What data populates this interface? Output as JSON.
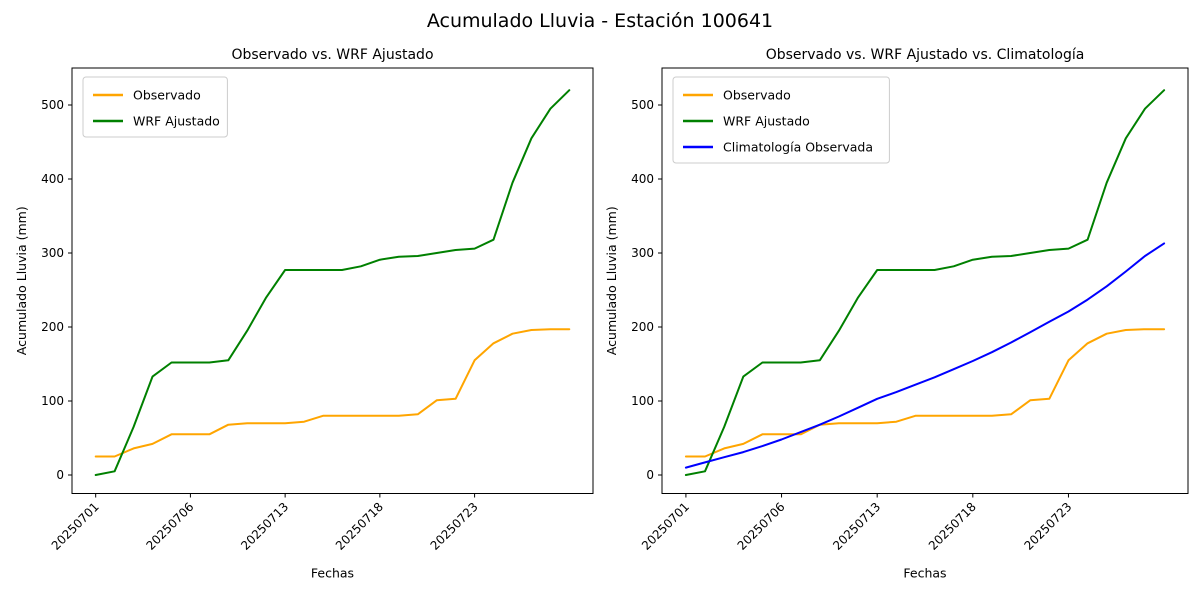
{
  "figure": {
    "suptitle": "Acumulado Lluvia - Estación 100641",
    "background": "#ffffff",
    "axis_color": "#000000",
    "legend_border_color": "#cccccc"
  },
  "chart_data": [
    {
      "type": "line",
      "title": "Observado vs. WRF Ajustado",
      "xlabel": "Fechas",
      "ylabel": "Acumulado Lluvia (mm)",
      "x_tick_positions": [
        0,
        5,
        10,
        15,
        20
      ],
      "x_tick_labels": [
        "20250701",
        "20250706",
        "20250713",
        "20250718",
        "20250723"
      ],
      "y_ticks": [
        0,
        100,
        200,
        300,
        400,
        500
      ],
      "xlim": [
        -1.25,
        26.25
      ],
      "ylim": [
        -25,
        550
      ],
      "n_points": 26,
      "grid": false,
      "legend_position": "upper-left",
      "series": [
        {
          "name": "Observado",
          "color": "#FFA500",
          "values": [
            25,
            25,
            36,
            42,
            55,
            55,
            55,
            68,
            70,
            70,
            70,
            72,
            80,
            80,
            80,
            80,
            80,
            82,
            101,
            103,
            155,
            178,
            191,
            196,
            197,
            197
          ]
        },
        {
          "name": "WRF Ajustado",
          "color": "#008000",
          "values": [
            0,
            5,
            65,
            133,
            152,
            152,
            152,
            155,
            195,
            240,
            277,
            277,
            277,
            277,
            282,
            291,
            295,
            296,
            300,
            304,
            306,
            318,
            395,
            455,
            495,
            520
          ]
        }
      ]
    },
    {
      "type": "line",
      "title": "Observado vs. WRF Ajustado vs. Climatología",
      "xlabel": "Fechas",
      "ylabel": "Acumulado Lluvia (mm)",
      "x_tick_positions": [
        0,
        5,
        10,
        15,
        20
      ],
      "x_tick_labels": [
        "20250701",
        "20250706",
        "20250713",
        "20250718",
        "20250723"
      ],
      "y_ticks": [
        0,
        100,
        200,
        300,
        400,
        500
      ],
      "xlim": [
        -1.25,
        26.25
      ],
      "ylim": [
        -25,
        550
      ],
      "n_points": 26,
      "grid": false,
      "legend_position": "upper-left",
      "series": [
        {
          "name": "Observado",
          "color": "#FFA500",
          "values": [
            25,
            25,
            36,
            42,
            55,
            55,
            55,
            68,
            70,
            70,
            70,
            72,
            80,
            80,
            80,
            80,
            80,
            82,
            101,
            103,
            155,
            178,
            191,
            196,
            197,
            197
          ]
        },
        {
          "name": "WRF Ajustado",
          "color": "#008000",
          "values": [
            0,
            5,
            65,
            133,
            152,
            152,
            152,
            155,
            195,
            240,
            277,
            277,
            277,
            277,
            282,
            291,
            295,
            296,
            300,
            304,
            306,
            318,
            395,
            455,
            495,
            520
          ]
        },
        {
          "name": "Climatología Observada",
          "color": "#0000FF",
          "values": [
            10,
            17,
            24,
            31,
            39,
            48,
            58,
            68,
            79,
            91,
            103,
            112,
            122,
            132,
            143,
            154,
            166,
            179,
            193,
            207,
            221,
            237,
            255,
            275,
            296,
            313
          ]
        }
      ]
    }
  ]
}
